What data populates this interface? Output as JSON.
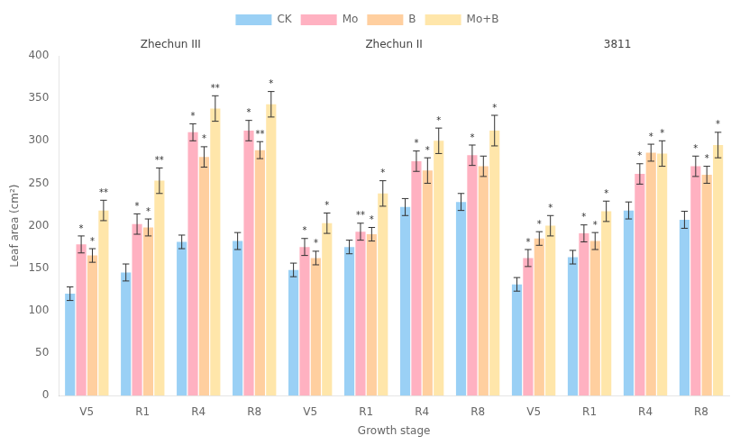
{
  "chart_data": {
    "type": "bar",
    "xlabel": "Growth stage",
    "ylabel": "Leaf area (cm²)",
    "categories": [
      "V5",
      "R1",
      "R4",
      "R8",
      "V5",
      "R1",
      "R4",
      "R8",
      "V5",
      "R1",
      "R4",
      "R8"
    ],
    "category_groups": [
      "Zhechun III",
      "Zhechun III",
      "Zhechun III",
      "Zhechun III",
      "Zhechun II",
      "Zhechun II",
      "Zhechun II",
      "Zhechun II",
      "3811",
      "3811",
      "3811",
      "3811"
    ],
    "series": [
      {
        "name": "CK",
        "values": [
          120,
          145,
          181,
          182,
          148,
          175,
          222,
          228,
          131,
          163,
          218,
          207
        ],
        "errors": [
          8,
          10,
          8,
          10,
          8,
          8,
          10,
          10,
          8,
          8,
          10,
          10
        ],
        "significance": [
          null,
          null,
          null,
          null,
          null,
          null,
          null,
          null,
          null,
          null,
          null,
          null
        ]
      },
      {
        "name": "Mo",
        "values": [
          178,
          202,
          310,
          312,
          175,
          193,
          276,
          283,
          162,
          191,
          261,
          270
        ],
        "errors": [
          10,
          12,
          10,
          12,
          10,
          10,
          12,
          12,
          10,
          10,
          12,
          12
        ],
        "significance": [
          "*",
          "*",
          "*",
          "*",
          "*",
          "**",
          "*",
          "*",
          "*",
          "*",
          "*",
          "*"
        ]
      },
      {
        "name": "B",
        "values": [
          165,
          198,
          281,
          289,
          162,
          190,
          265,
          270,
          185,
          182,
          286,
          260
        ],
        "errors": [
          8,
          10,
          12,
          10,
          8,
          8,
          15,
          12,
          8,
          10,
          10,
          10
        ],
        "significance": [
          "*",
          "*",
          "*",
          "**",
          "*",
          "*",
          "*",
          null,
          "*",
          "*",
          "*",
          "*"
        ]
      },
      {
        "name": "Mo+B",
        "values": [
          218,
          253,
          338,
          343,
          203,
          238,
          300,
          312,
          200,
          217,
          285,
          295
        ],
        "errors": [
          12,
          15,
          15,
          15,
          12,
          15,
          15,
          18,
          12,
          12,
          15,
          15
        ],
        "significance": [
          "**",
          "**",
          "**",
          "*",
          "*",
          "*",
          "*",
          "*",
          "*",
          "*",
          "*",
          "*"
        ]
      }
    ],
    "ylim": [
      0,
      400
    ],
    "yticks": [
      0,
      50,
      100,
      150,
      200,
      250,
      300,
      350,
      400
    ],
    "grid": false,
    "legend": "top"
  }
}
